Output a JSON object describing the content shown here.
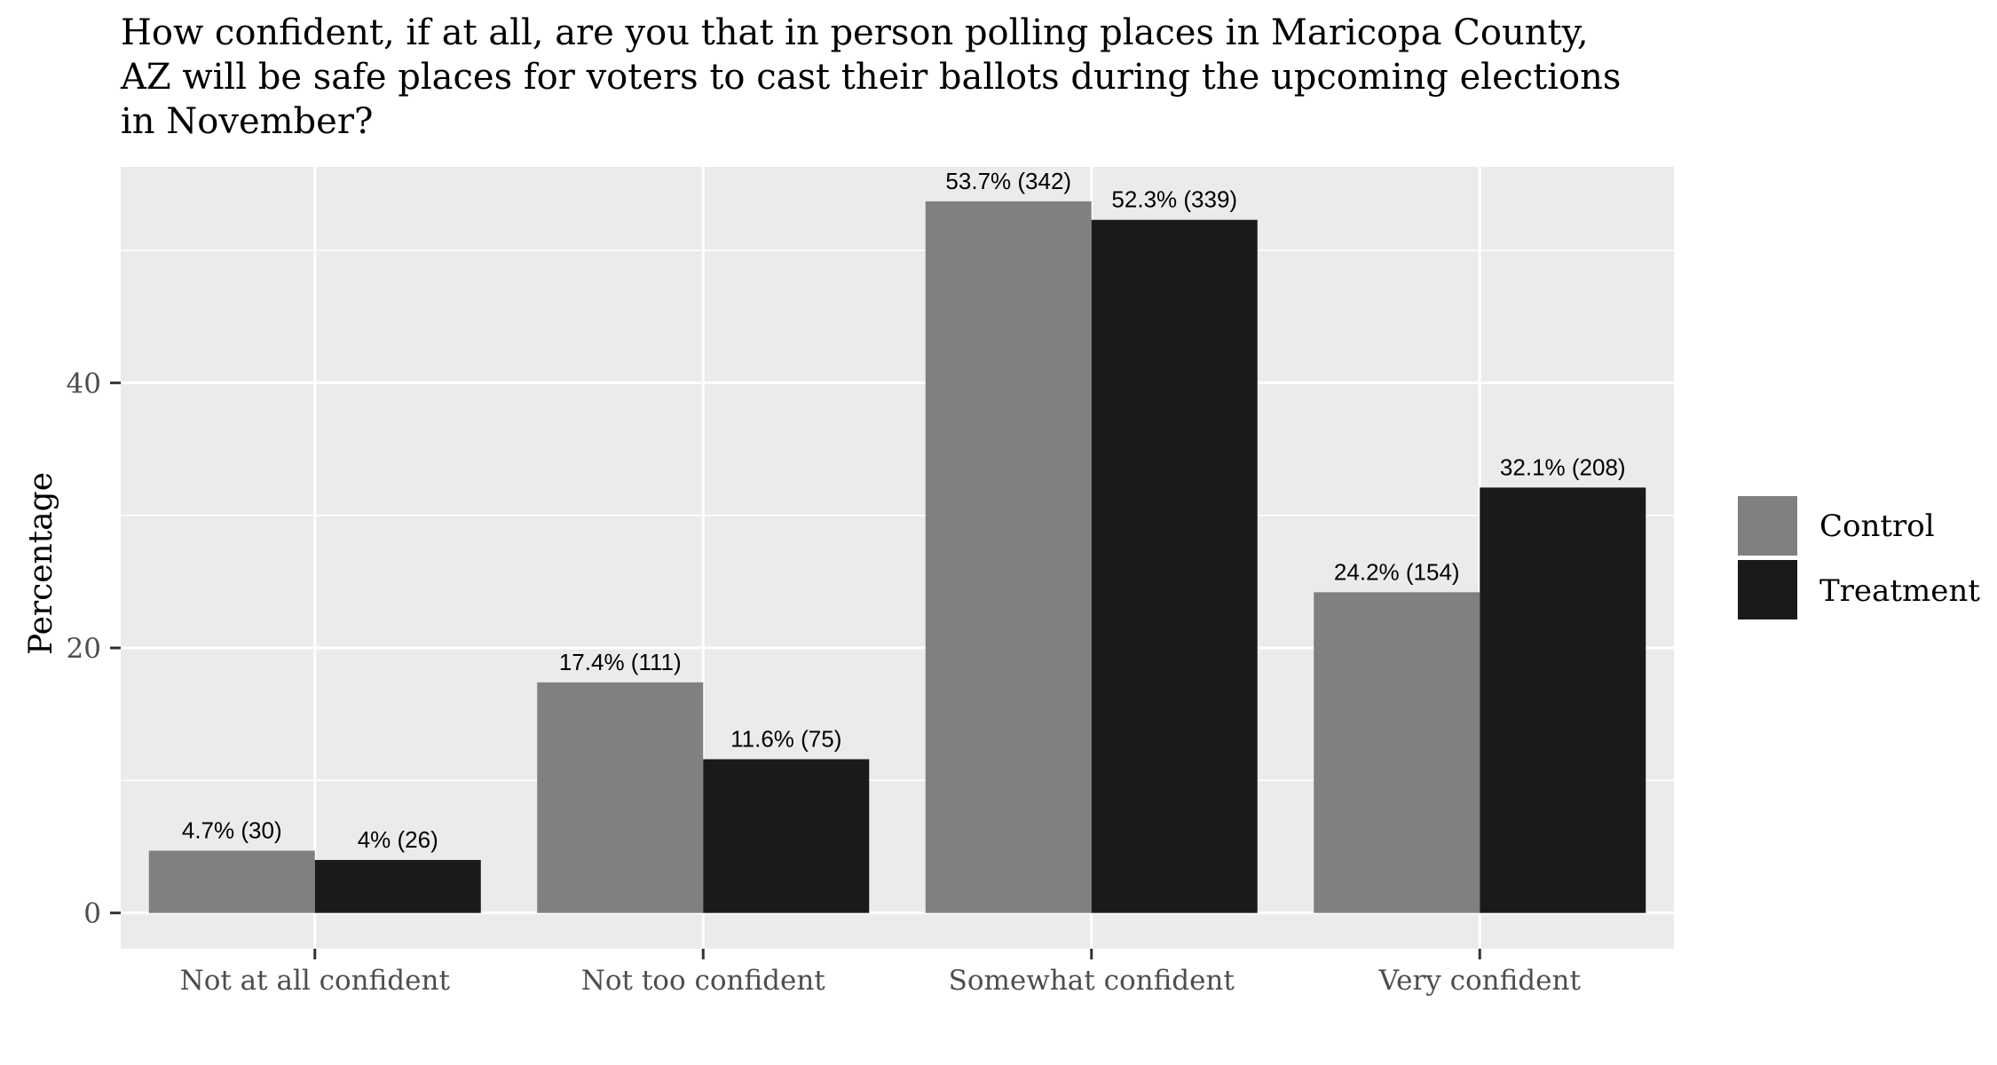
{
  "chart_data": {
    "type": "bar",
    "title": "How confident, if at all, are you that in person polling places in Maricopa County, AZ will be safe places for voters to cast their ballots during the upcoming elections in November?",
    "title_lines": [
      "How confident, if at all, are you that in person polling places in Maricopa County,",
      "AZ will be safe places for voters to cast their ballots during the upcoming elections",
      "in November?"
    ],
    "xlabel": "",
    "ylabel": "Percentage",
    "categories": [
      "Not at all confident",
      "Not too confident",
      "Somewhat confident",
      "Very confident"
    ],
    "series": [
      {
        "name": "Control",
        "color": "#808080",
        "values": [
          4.7,
          17.4,
          53.7,
          24.2
        ],
        "labels": [
          "4.7% (30)",
          "17.4% (111)",
          "53.7% (342)",
          "24.2% (154)"
        ]
      },
      {
        "name": "Treatment",
        "color": "#1a1a1a",
        "values": [
          4.0,
          11.6,
          52.3,
          32.1
        ],
        "labels": [
          "4% (26)",
          "11.6% (75)",
          "52.3% (339)",
          "32.1% (208)"
        ]
      }
    ],
    "ylim": [
      -2.7,
      56.3
    ],
    "y_ticks": [
      0,
      20,
      40
    ],
    "y_tick_labels": [
      "0",
      "20",
      "40"
    ],
    "y_minor_grid": [
      10,
      30,
      50
    ],
    "grid": true,
    "panel_background": "#ebebeb",
    "grid_color": "#ffffff",
    "legend": "right"
  }
}
